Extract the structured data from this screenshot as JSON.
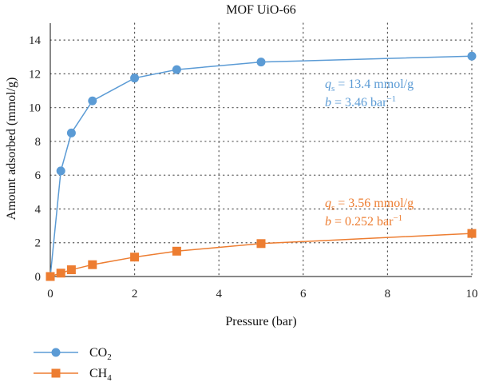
{
  "chart_data": {
    "type": "line",
    "title": "MOF UiO-66",
    "xlabel": "Pressure (bar)",
    "ylabel": "Amount adsorbed (mmol/g)",
    "xlim": [
      0,
      10
    ],
    "ylim": [
      0,
      15
    ],
    "xticks": [
      0,
      2,
      4,
      6,
      8,
      10
    ],
    "yticks": [
      0,
      2,
      4,
      6,
      8,
      10,
      12,
      14
    ],
    "grid": "dotted",
    "legend_position": "bottom-left",
    "series": [
      {
        "name": "CO2",
        "name_base": "CO",
        "name_sub": "2",
        "color": "#5b9bd5",
        "marker": "circle",
        "x": [
          0,
          0.25,
          0.5,
          1,
          2,
          3,
          5,
          10
        ],
        "y": [
          0,
          6.25,
          8.5,
          10.4,
          11.75,
          12.25,
          12.7,
          13.05
        ],
        "annotation": {
          "line1_sym": "q",
          "line1_sub": "s",
          "line1_rest": " = 13.4 mmol/g",
          "line2_sym": "b",
          "line2_rest": " = 3.46 bar",
          "line2_sup": "−1"
        }
      },
      {
        "name": "CH4",
        "name_base": "CH",
        "name_sub": "4",
        "color": "#ed7d31",
        "marker": "square",
        "x": [
          0,
          0.25,
          0.5,
          1,
          2,
          3,
          5,
          10
        ],
        "y": [
          0,
          0.2,
          0.4,
          0.7,
          1.15,
          1.5,
          1.95,
          2.55
        ],
        "annotation": {
          "line1_sym": "q",
          "line1_sub": "s",
          "line1_rest": " = 3.56 mmol/g",
          "line2_sym": "b",
          "line2_rest": " = 0.252 bar",
          "line2_sup": "−1"
        }
      }
    ]
  }
}
